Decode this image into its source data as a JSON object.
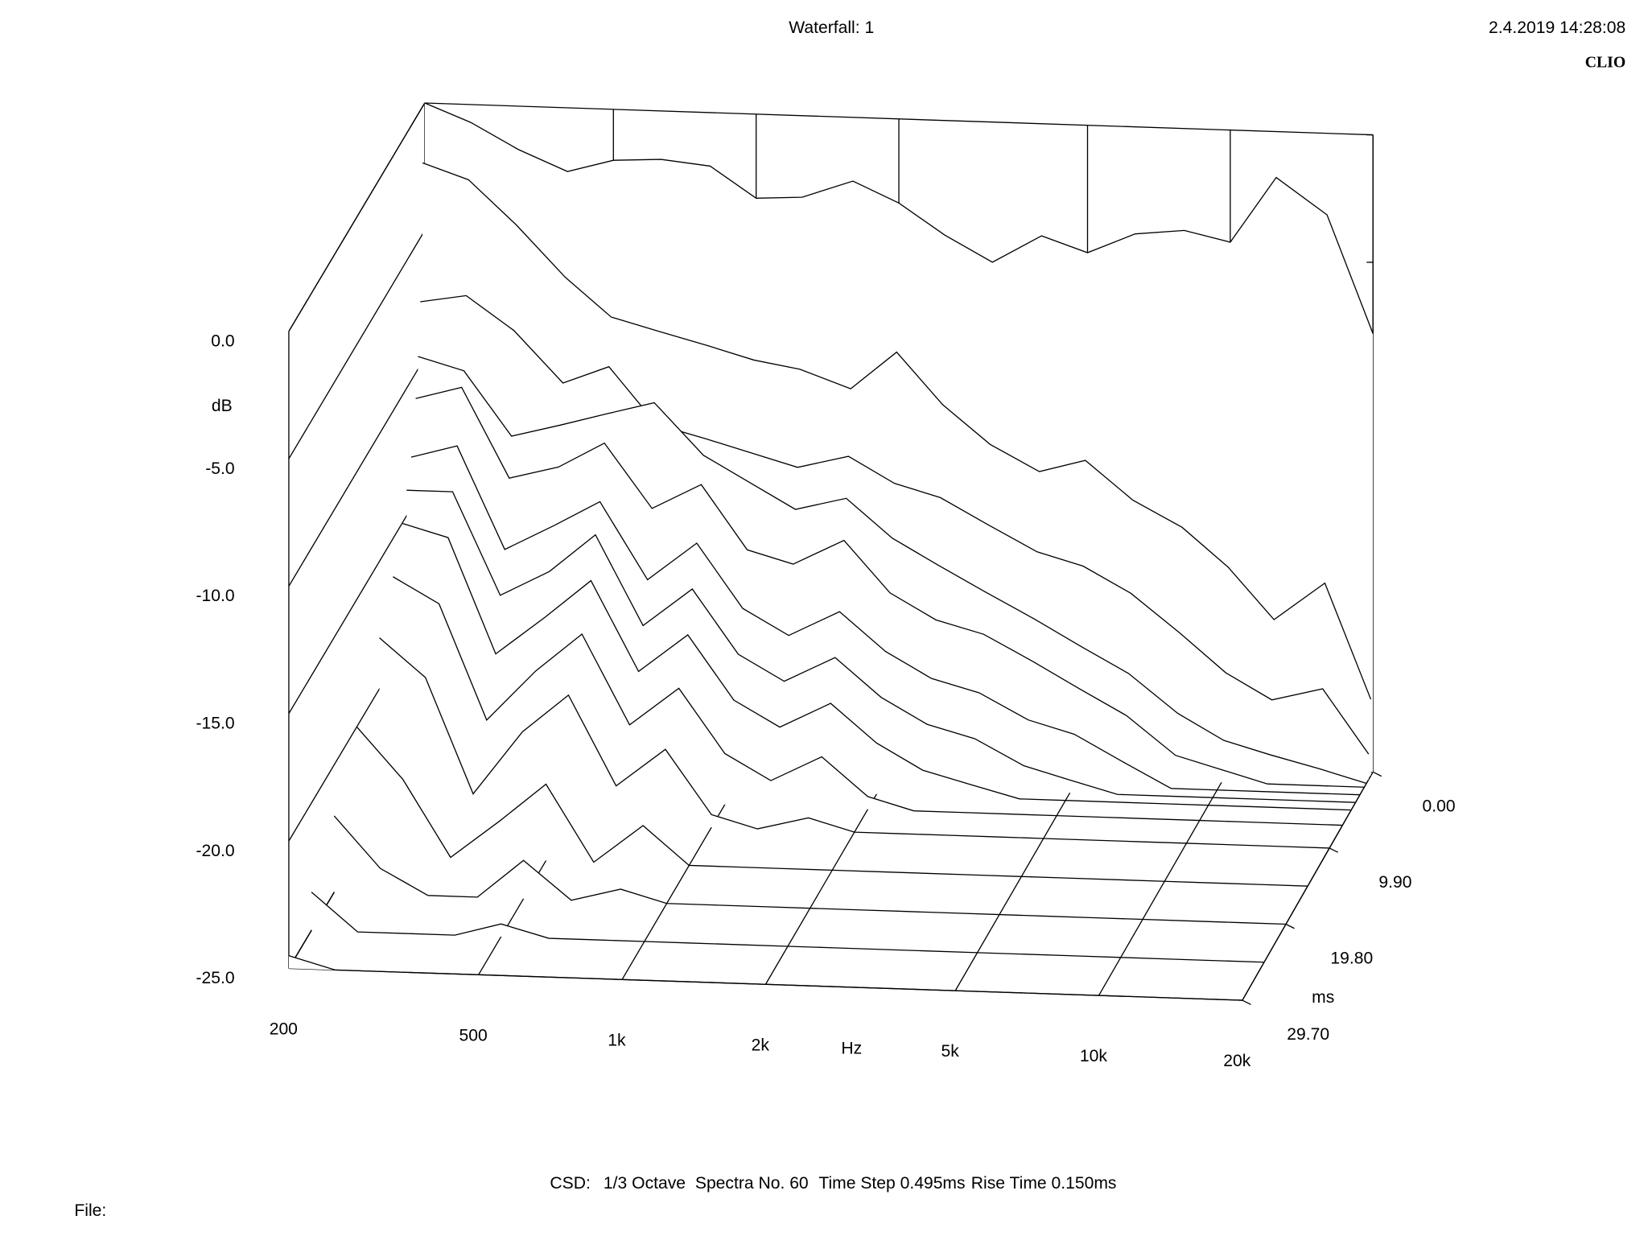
{
  "chart_data": {
    "type": "waterfall",
    "title": "Waterfall: 1",
    "timestamp": "2.4.2019 14:28:08",
    "brand": "CLIO",
    "footer": [
      "CSD:",
      "1/3 Octave",
      "Spectra No. 60",
      "Time Step 0.495ms",
      "Rise Time 0.150ms"
    ],
    "file_label": "File:",
    "xlabel": "Hz",
    "ylabel": "dB",
    "zlabel": "ms",
    "xscale": "log",
    "xlim": [
      200,
      20000
    ],
    "xticks": [
      200,
      500,
      {
        "value": 1000,
        "label": "1k"
      },
      {
        "value": 2000,
        "label": "2k"
      },
      {
        "value": 5000,
        "label": "5k"
      },
      {
        "value": 10000,
        "label": "10k"
      },
      {
        "value": 20000,
        "label": "20k"
      }
    ],
    "ylim": [
      -25,
      0
    ],
    "yticks": [
      {
        "value": 0,
        "label": "0.0"
      },
      {
        "value": -5,
        "label": "-5.0"
      },
      {
        "value": -10,
        "label": "-10.0"
      },
      {
        "value": -15,
        "label": "-15.0"
      },
      {
        "value": -20,
        "label": "-20.0"
      },
      {
        "value": -25,
        "label": "-25.0"
      }
    ],
    "zlim": [
      0,
      29.7
    ],
    "zticks": [
      {
        "value": 0,
        "label": "0.00"
      },
      {
        "value": 9.9,
        "label": "9.90"
      },
      {
        "value": 19.8,
        "label": "19.80"
      },
      {
        "value": 29.7,
        "label": "29.70"
      }
    ],
    "color": "#000000",
    "x": [
      200,
      250,
      315,
      400,
      500,
      630,
      800,
      1000,
      1250,
      1600,
      2000,
      2500,
      3150,
      4000,
      5000,
      6300,
      8000,
      10000,
      12500,
      16000,
      20000
    ],
    "slices": [
      {
        "t": 0,
        "values": [
          0,
          -0.7,
          -1.7,
          -2.5,
          -2.0,
          -1.9,
          -2.1,
          -3.3,
          -3.2,
          -2.5,
          -3.3,
          -4.5,
          -5.5,
          -4.4,
          -5.0,
          -4.2,
          -4.0,
          -4.4,
          -1.8,
          -3.2,
          -7.8
        ]
      },
      {
        "t": 0.495,
        "values": [
          -2.2,
          -2.8,
          -4.5,
          -6.5,
          -8.0,
          -8.5,
          -9.0,
          -9.5,
          -9.8,
          -10.5,
          -9.0,
          -11.0,
          -12.5,
          -13.5,
          -13.0,
          -14.5,
          -15.5,
          -17.0,
          -19.0,
          -17.5,
          -22.0
        ]
      },
      {
        "t": 0.99,
        "values": [
          -7.5,
          -7.2,
          -8.5,
          -10.5,
          -9.8,
          -12.0,
          -12.5,
          -13.0,
          -13.5,
          -13.0,
          -14.0,
          -14.5,
          -15.5,
          -16.5,
          -17.0,
          -18.0,
          -19.5,
          -21.0,
          -22.0,
          -21.5,
          -24.0
        ]
      },
      {
        "t": 1.485,
        "values": [
          -9.5,
          -10.0,
          -12.5,
          -12.0,
          -11.5,
          -11.0,
          -13.0,
          -14.0,
          -15.0,
          -14.5,
          -16.0,
          -17.0,
          -18.0,
          -19.0,
          -20.0,
          -21.0,
          -22.5,
          -23.5,
          -24.0,
          -24.5,
          -25
        ]
      },
      {
        "t": 1.98,
        "values": [
          -11.0,
          -10.5,
          -14.0,
          -13.5,
          -12.5,
          -15.0,
          -14.0,
          -16.5,
          -17.0,
          -16.0,
          -18.0,
          -19.0,
          -19.5,
          -20.5,
          -21.5,
          -22.5,
          -24.0,
          -24.5,
          -25,
          -25,
          -25
        ]
      },
      {
        "t": 2.97,
        "values": [
          -13.0,
          -12.5,
          -16.5,
          -15.5,
          -14.5,
          -17.5,
          -16.0,
          -18.5,
          -19.5,
          -18.5,
          -20.0,
          -21.0,
          -21.5,
          -22.5,
          -23.0,
          -24.0,
          -25,
          -25,
          -25,
          -25,
          -25
        ]
      },
      {
        "t": 3.96,
        "values": [
          -14.0,
          -14.0,
          -18.0,
          -17.0,
          -15.5,
          -19.0,
          -17.5,
          -20.0,
          -21.0,
          -20.0,
          -21.5,
          -22.5,
          -23.0,
          -24.0,
          -24.5,
          -25,
          -25,
          -25,
          -25,
          -25,
          -25
        ]
      },
      {
        "t": 4.95,
        "values": [
          -15.0,
          -15.5,
          -20.0,
          -18.5,
          -17.0,
          -20.5,
          -19.0,
          -21.5,
          -22.5,
          -21.5,
          -23.0,
          -24.0,
          -24.5,
          -25,
          -25,
          -25,
          -25,
          -25,
          -25,
          -25,
          -25
        ]
      },
      {
        "t": 6.93,
        "values": [
          -16.5,
          -17.5,
          -22.0,
          -20.0,
          -18.5,
          -22.0,
          -20.5,
          -23.0,
          -24.0,
          -23.0,
          -24.5,
          -25,
          -25,
          -25,
          -25,
          -25,
          -25,
          -25,
          -25,
          -25,
          -25
        ]
      },
      {
        "t": 9.9,
        "values": [
          -18.0,
          -19.5,
          -24.0,
          -21.5,
          -20.0,
          -23.5,
          -22.0,
          -24.5,
          -25,
          -24.5,
          -25,
          -25,
          -25,
          -25,
          -25,
          -25,
          -25,
          -25,
          -25,
          -25,
          -25
        ]
      },
      {
        "t": 14.85,
        "values": [
          -20.0,
          -22.0,
          -25,
          -23.5,
          -22.0,
          -25,
          -23.5,
          -25,
          -25,
          -25,
          -25,
          -25,
          -25,
          -25,
          -25,
          -25,
          -25,
          -25,
          -25,
          -25,
          -25
        ]
      },
      {
        "t": 19.8,
        "values": [
          -22.0,
          -24.0,
          -25,
          -25,
          -23.5,
          -25,
          -24.5,
          -25,
          -25,
          -25,
          -25,
          -25,
          -25,
          -25,
          -25,
          -25,
          -25,
          -25,
          -25,
          -25,
          -25
        ]
      },
      {
        "t": 24.75,
        "values": [
          -23.5,
          -25,
          -25,
          -25,
          -24.5,
          -25,
          -25,
          -25,
          -25,
          -25,
          -25,
          -25,
          -25,
          -25,
          -25,
          -25,
          -25,
          -25,
          -25,
          -25,
          -25
        ]
      },
      {
        "t": 29.7,
        "values": [
          -24.5,
          -25,
          -25,
          -25,
          -25,
          -25,
          -25,
          -25,
          -25,
          -25,
          -25,
          -25,
          -25,
          -25,
          -25,
          -25,
          -25,
          -25,
          -25,
          -25,
          -25
        ]
      }
    ]
  }
}
